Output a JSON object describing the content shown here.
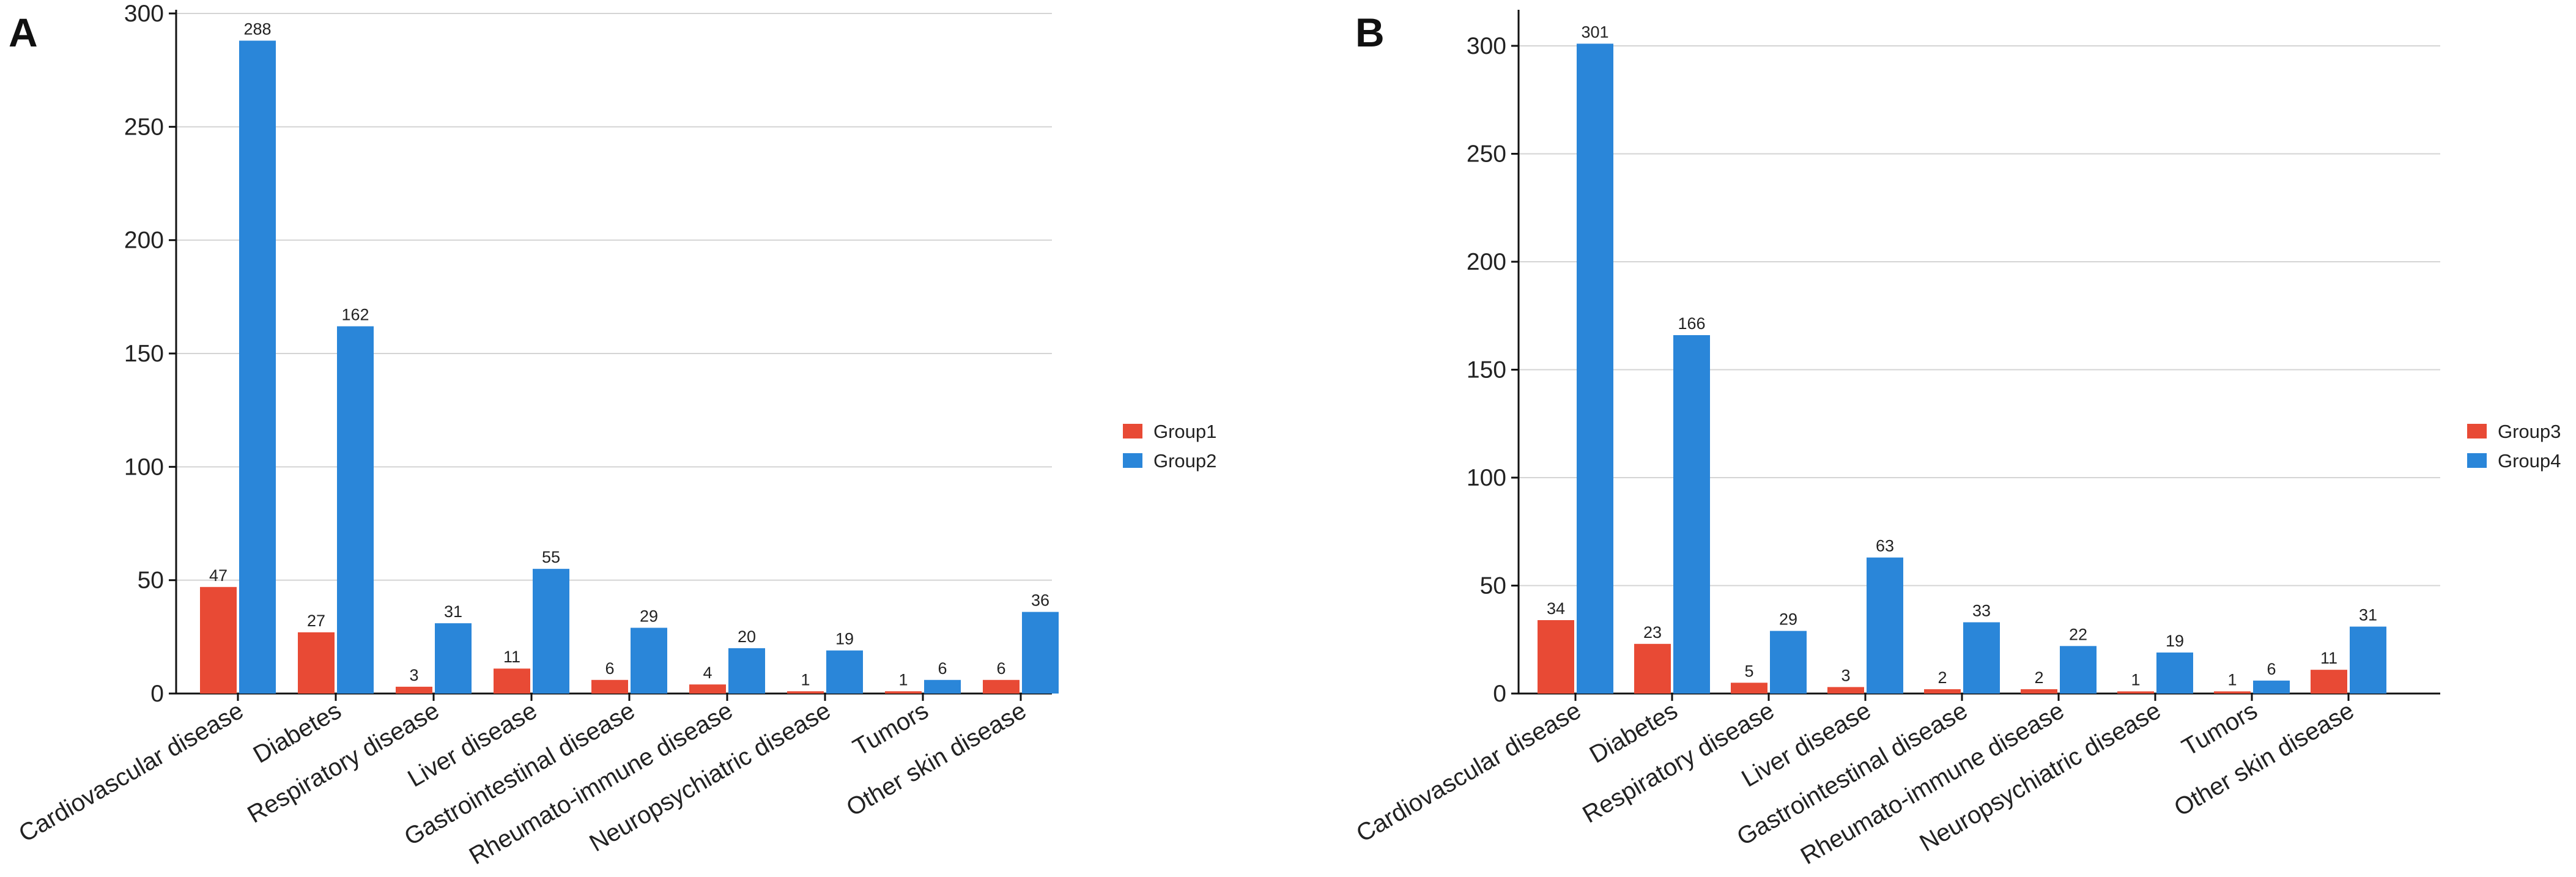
{
  "chart_data": [
    {
      "type": "bar",
      "panel_label": "A",
      "title": "",
      "xlabel": "",
      "ylabel": "",
      "ylim": [
        0,
        300
      ],
      "yticks": [
        0,
        50,
        100,
        150,
        200,
        250,
        300
      ],
      "grid": true,
      "legend_position": "right",
      "categories": [
        "Cardiovascular disease",
        "Diabetes",
        "Respiratory disease",
        "Liver disease",
        "Gastrointestinal disease",
        "Rheumato-immune disease",
        "Neuropsychiatric disease",
        "Tumors",
        "Other skin disease"
      ],
      "series": [
        {
          "name": "Group1",
          "color": "#E84A35",
          "values": [
            47,
            27,
            3,
            11,
            6,
            4,
            1,
            1,
            6
          ]
        },
        {
          "name": "Group2",
          "color": "#2A86D9",
          "values": [
            288,
            162,
            31,
            55,
            29,
            20,
            19,
            6,
            36
          ]
        }
      ]
    },
    {
      "type": "bar",
      "panel_label": "B",
      "title": "",
      "xlabel": "",
      "ylabel": "",
      "ylim": [
        0,
        315
      ],
      "yticks": [
        0,
        50,
        100,
        150,
        200,
        250,
        300
      ],
      "grid": true,
      "legend_position": "right",
      "categories": [
        "Cardiovascular disease",
        "Diabetes",
        "Respiratory disease",
        "Liver disease",
        "Gastrointestinal disease",
        "Rheumato-immune disease",
        "Neuropsychiatric disease",
        "Tumors",
        "Other skin disease"
      ],
      "series": [
        {
          "name": "Group3",
          "color": "#E84A35",
          "values": [
            34,
            23,
            5,
            3,
            2,
            2,
            1,
            1,
            11
          ]
        },
        {
          "name": "Group4",
          "color": "#2A86D9",
          "values": [
            301,
            166,
            29,
            63,
            33,
            22,
            19,
            6,
            31
          ]
        }
      ]
    }
  ]
}
